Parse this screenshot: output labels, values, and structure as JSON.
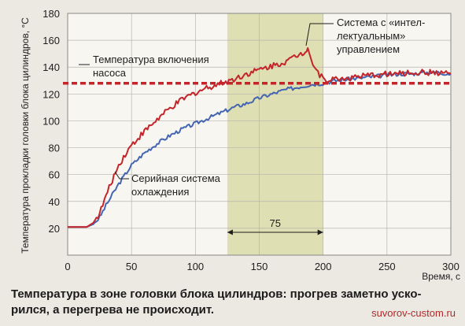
{
  "chart_data": {
    "type": "line",
    "ylabel": "Температура прокладки головки блока цилиндров, °С",
    "xlabel": "Время, с",
    "xlim": [
      0,
      300
    ],
    "ylim": [
      0,
      180
    ],
    "xticks": [
      0,
      50,
      100,
      150,
      200,
      250,
      300
    ],
    "yticks": [
      20,
      40,
      60,
      80,
      100,
      120,
      140,
      160,
      180
    ],
    "grid": true,
    "highlight": {
      "x_range": [
        125,
        200
      ],
      "color": "#dedfb2"
    },
    "interval_label": {
      "text": "75",
      "x_range": [
        125,
        200
      ],
      "y": 17
    },
    "series": [
      {
        "name": "Серийная система охлаждения",
        "color": "#4466b2",
        "x": [
          0,
          10,
          15,
          20,
          25,
          30,
          35,
          40,
          45,
          50,
          60,
          70,
          80,
          90,
          100,
          110,
          120,
          130,
          140,
          150,
          160,
          170,
          180,
          190,
          200,
          210,
          220,
          230,
          240,
          250,
          260,
          270,
          280,
          290,
          300
        ],
        "y": [
          21,
          21,
          21,
          23,
          28,
          37,
          45,
          53,
          60,
          67,
          76,
          83,
          89,
          94,
          98,
          102,
          106,
          110,
          113,
          117,
          120,
          123,
          125,
          127,
          128,
          130,
          131,
          132,
          133,
          134,
          135,
          135,
          136,
          136,
          135
        ]
      },
      {
        "name": "Система с «интеллектуальным» управлением",
        "color": "#c3252a",
        "x": [
          0,
          10,
          15,
          20,
          25,
          30,
          35,
          40,
          45,
          50,
          60,
          70,
          80,
          90,
          100,
          110,
          120,
          130,
          140,
          150,
          160,
          170,
          175,
          180,
          185,
          188,
          192,
          196,
          200,
          210,
          220,
          230,
          240,
          250,
          260,
          270,
          280,
          290,
          300
        ],
        "y": [
          21,
          21,
          21,
          24,
          31,
          44,
          56,
          67,
          75,
          82,
          92,
          101,
          109,
          116,
          121,
          125,
          128,
          131,
          135,
          138,
          141,
          144,
          146,
          149,
          151,
          155,
          142,
          136,
          131,
          131,
          132,
          133,
          134,
          135,
          135,
          136,
          136,
          136,
          135
        ]
      }
    ],
    "reference_line": {
      "name": "Температура включения насоса",
      "y": 128,
      "style": "dashed",
      "color": "#c3252a"
    },
    "annotations": [
      {
        "lines": [
          "Температура включения",
          "насоса"
        ]
      },
      {
        "lines": [
          "Система с «интел-",
          "лектуальным»",
          "управлением"
        ]
      },
      {
        "lines": [
          "Серийная система",
          "охлаждения"
        ]
      }
    ]
  },
  "caption": {
    "line1": "Температура в зоне головки блока цилиндров: прогрев заметно уско-",
    "line2": "рился, а перегрева не происходит."
  },
  "watermark": "suvorov-custom.ru"
}
